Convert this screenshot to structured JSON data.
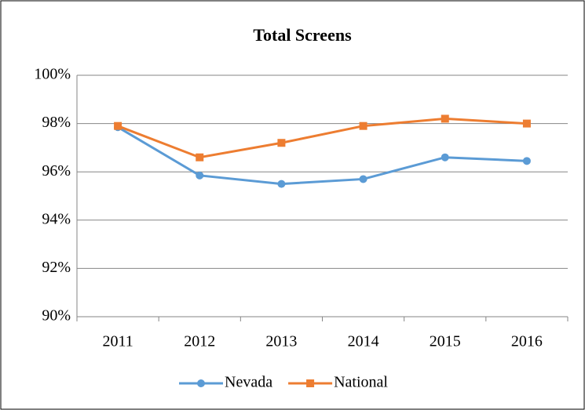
{
  "chart_data": {
    "type": "line",
    "title": "Total Screens",
    "categories": [
      "2011",
      "2012",
      "2013",
      "2014",
      "2015",
      "2016"
    ],
    "series": [
      {
        "name": "Nevada",
        "color": "#5b9bd5",
        "marker": "circle",
        "values": [
          97.85,
          95.85,
          95.5,
          95.7,
          96.6,
          96.45
        ]
      },
      {
        "name": "National",
        "color": "#ed7d31",
        "marker": "square",
        "values": [
          97.9,
          96.6,
          97.2,
          97.9,
          98.2,
          98.0
        ]
      }
    ],
    "ylim": [
      90,
      100
    ],
    "yticks": [
      {
        "value": 90,
        "label": "90%"
      },
      {
        "value": 92,
        "label": "92%"
      },
      {
        "value": 94,
        "label": "94%"
      },
      {
        "value": 96,
        "label": "96%"
      },
      {
        "value": 98,
        "label": "98%"
      },
      {
        "value": 100,
        "label": "100%"
      }
    ],
    "grid": true,
    "legend": "bottom"
  }
}
